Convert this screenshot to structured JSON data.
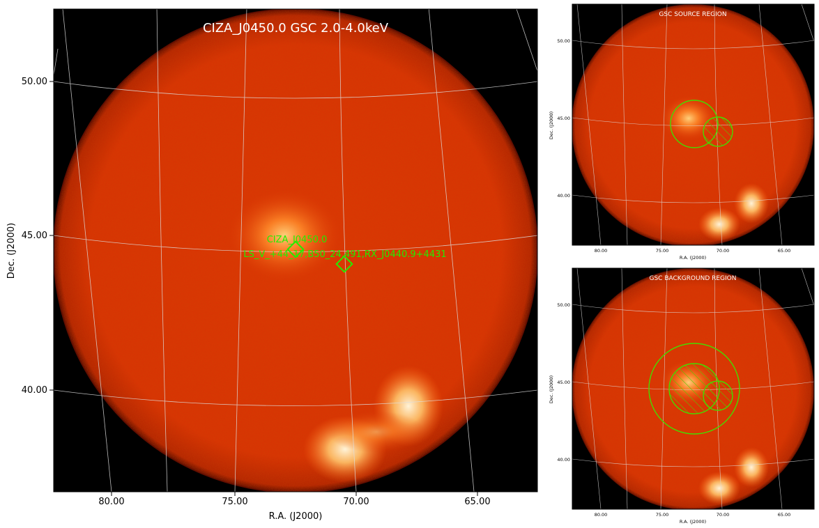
{
  "main": {
    "title": "CIZA_J0450.0 GSC 2.0-4.0keV",
    "xlabel": "R.A. (J2000)",
    "ylabel": "Dec. (J2000)",
    "ra_ticks": [
      "80.00",
      "75.00",
      "70.00",
      "65.00"
    ],
    "dec_ticks": [
      "50.00",
      "45.00",
      "40.00"
    ],
    "sources": [
      {
        "name": "CIZA_J0450.0"
      },
      {
        "name": "LS_V_+44_17,B50_24,491,RX_J0440.9+4431"
      }
    ]
  },
  "source_panel": {
    "title": "GSC SOURCE REGION",
    "xlabel": "R.A. (J2000)",
    "ylabel": "Dec. (J2000)",
    "ra_ticks": [
      "80.00",
      "75.00",
      "70.00",
      "65.00"
    ],
    "dec_ticks": [
      "50.00",
      "45.00",
      "40.00"
    ]
  },
  "background_panel": {
    "title": "GSC BACKGROUND REGION",
    "xlabel": "R.A. (J2000)",
    "ylabel": "Dec. (J2000)",
    "ra_ticks": [
      "80.00",
      "75.00",
      "70.00",
      "65.00"
    ],
    "dec_ticks": [
      "50.00",
      "45.00",
      "40.00"
    ]
  },
  "colors": {
    "marker": "#22ee00",
    "grid": "#dddddd",
    "sky_base": "#e03a05",
    "background": "#000000"
  }
}
